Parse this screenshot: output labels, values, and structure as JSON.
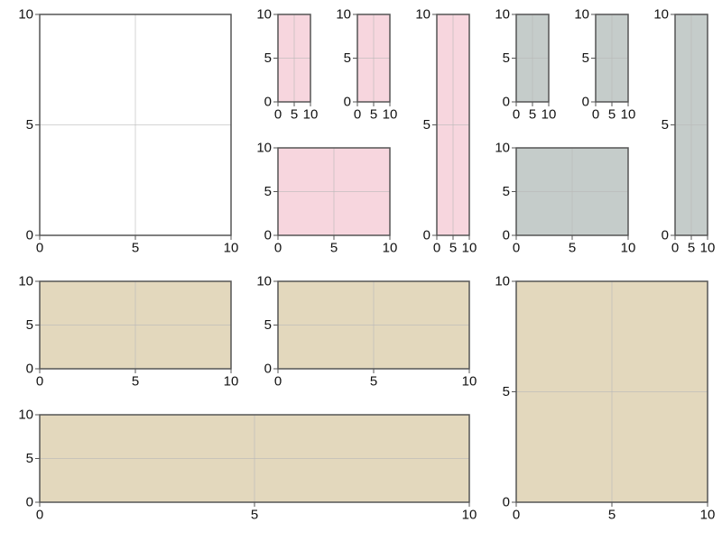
{
  "colors": {
    "plain": "#ffffff",
    "pink": "#f7d6de",
    "gray": "#c5ccca",
    "tan": "#e3d8bd",
    "frame": "#555555",
    "grid": "#b8b8b8"
  },
  "chart_data": [
    {
      "type": "blank-axes",
      "fill": "plain",
      "xlim": [
        0,
        10
      ],
      "ylim": [
        0,
        10
      ],
      "xticks": [
        {
          "label": "0",
          "value": 0
        },
        {
          "label": "5",
          "value": 5
        },
        {
          "label": "10",
          "value": 10
        }
      ],
      "yticks": [
        {
          "label": "0",
          "value": 0
        },
        {
          "label": "5",
          "value": 5
        },
        {
          "label": "10",
          "value": 10
        }
      ]
    },
    {
      "type": "blank-axes",
      "fill": "pink",
      "xlim": [
        0,
        10
      ],
      "ylim": [
        0,
        10
      ],
      "xticks": [
        {
          "label": "0",
          "value": 0
        },
        {
          "label": "5",
          "value": 5
        },
        {
          "label": "10",
          "value": 10
        }
      ],
      "yticks": [
        {
          "label": "0",
          "value": 0
        },
        {
          "label": "5",
          "value": 5
        },
        {
          "label": "10",
          "value": 10
        }
      ]
    },
    {
      "type": "blank-axes",
      "fill": "pink",
      "xlim": [
        0,
        10
      ],
      "ylim": [
        0,
        10
      ],
      "xticks": [
        {
          "label": "0",
          "value": 0
        },
        {
          "label": "5",
          "value": 5
        },
        {
          "label": "10",
          "value": 10
        }
      ],
      "yticks": [
        {
          "label": "0",
          "value": 0
        },
        {
          "label": "5",
          "value": 5
        },
        {
          "label": "10",
          "value": 10
        }
      ]
    },
    {
      "type": "blank-axes",
      "fill": "pink",
      "xlim": [
        0,
        10
      ],
      "ylim": [
        0,
        10
      ],
      "xticks": [
        {
          "label": "0",
          "value": 0
        },
        {
          "label": "5",
          "value": 5
        },
        {
          "label": "10",
          "value": 10
        }
      ],
      "yticks": [
        {
          "label": "0",
          "value": 0
        },
        {
          "label": "5",
          "value": 5
        },
        {
          "label": "10",
          "value": 10
        }
      ]
    },
    {
      "type": "blank-axes",
      "fill": "pink",
      "xlim": [
        0,
        10
      ],
      "ylim": [
        0,
        10
      ],
      "xticks": [
        {
          "label": "0",
          "value": 0
        },
        {
          "label": "5",
          "value": 5
        },
        {
          "label": "10",
          "value": 10
        }
      ],
      "yticks": [
        {
          "label": "0",
          "value": 0
        },
        {
          "label": "5",
          "value": 5
        },
        {
          "label": "10",
          "value": 10
        }
      ]
    },
    {
      "type": "blank-axes",
      "fill": "gray",
      "xlim": [
        0,
        10
      ],
      "ylim": [
        0,
        10
      ],
      "xticks": [
        {
          "label": "0",
          "value": 0
        },
        {
          "label": "5",
          "value": 5
        },
        {
          "label": "10",
          "value": 10
        }
      ],
      "yticks": [
        {
          "label": "0",
          "value": 0
        },
        {
          "label": "5",
          "value": 5
        },
        {
          "label": "10",
          "value": 10
        }
      ]
    },
    {
      "type": "blank-axes",
      "fill": "gray",
      "xlim": [
        0,
        10
      ],
      "ylim": [
        0,
        10
      ],
      "xticks": [
        {
          "label": "0",
          "value": 0
        },
        {
          "label": "5",
          "value": 5
        },
        {
          "label": "10",
          "value": 10
        }
      ],
      "yticks": [
        {
          "label": "0",
          "value": 0
        },
        {
          "label": "5",
          "value": 5
        },
        {
          "label": "10",
          "value": 10
        }
      ]
    },
    {
      "type": "blank-axes",
      "fill": "gray",
      "xlim": [
        0,
        10
      ],
      "ylim": [
        0,
        10
      ],
      "xticks": [
        {
          "label": "0",
          "value": 0
        },
        {
          "label": "5",
          "value": 5
        },
        {
          "label": "10",
          "value": 10
        }
      ],
      "yticks": [
        {
          "label": "0",
          "value": 0
        },
        {
          "label": "5",
          "value": 5
        },
        {
          "label": "10",
          "value": 10
        }
      ]
    },
    {
      "type": "blank-axes",
      "fill": "gray",
      "xlim": [
        0,
        10
      ],
      "ylim": [
        0,
        10
      ],
      "xticks": [
        {
          "label": "0",
          "value": 0
        },
        {
          "label": "5",
          "value": 5
        },
        {
          "label": "10",
          "value": 10
        }
      ],
      "yticks": [
        {
          "label": "0",
          "value": 0
        },
        {
          "label": "5",
          "value": 5
        },
        {
          "label": "10",
          "value": 10
        }
      ]
    },
    {
      "type": "blank-axes",
      "fill": "tan",
      "xlim": [
        0,
        10
      ],
      "ylim": [
        0,
        10
      ],
      "xticks": [
        {
          "label": "0",
          "value": 0
        },
        {
          "label": "5",
          "value": 5
        },
        {
          "label": "10",
          "value": 10
        }
      ],
      "yticks": [
        {
          "label": "0",
          "value": 0
        },
        {
          "label": "5",
          "value": 5
        },
        {
          "label": "10",
          "value": 10
        }
      ]
    },
    {
      "type": "blank-axes",
      "fill": "tan",
      "xlim": [
        0,
        10
      ],
      "ylim": [
        0,
        10
      ],
      "xticks": [
        {
          "label": "0",
          "value": 0
        },
        {
          "label": "5",
          "value": 5
        },
        {
          "label": "10",
          "value": 10
        }
      ],
      "yticks": [
        {
          "label": "0",
          "value": 0
        },
        {
          "label": "5",
          "value": 5
        },
        {
          "label": "10",
          "value": 10
        }
      ]
    },
    {
      "type": "blank-axes",
      "fill": "tan",
      "xlim": [
        0,
        10
      ],
      "ylim": [
        0,
        10
      ],
      "xticks": [
        {
          "label": "0",
          "value": 0
        },
        {
          "label": "5",
          "value": 5
        },
        {
          "label": "10",
          "value": 10
        }
      ],
      "yticks": [
        {
          "label": "0",
          "value": 0
        },
        {
          "label": "5",
          "value": 5
        },
        {
          "label": "10",
          "value": 10
        }
      ]
    },
    {
      "type": "blank-axes",
      "fill": "tan",
      "xlim": [
        0,
        10
      ],
      "ylim": [
        0,
        10
      ],
      "xticks": [
        {
          "label": "0",
          "value": 0
        },
        {
          "label": "5",
          "value": 5
        },
        {
          "label": "10",
          "value": 10
        }
      ],
      "yticks": [
        {
          "label": "0",
          "value": 0
        },
        {
          "label": "5",
          "value": 5
        },
        {
          "label": "10",
          "value": 10
        }
      ]
    }
  ]
}
